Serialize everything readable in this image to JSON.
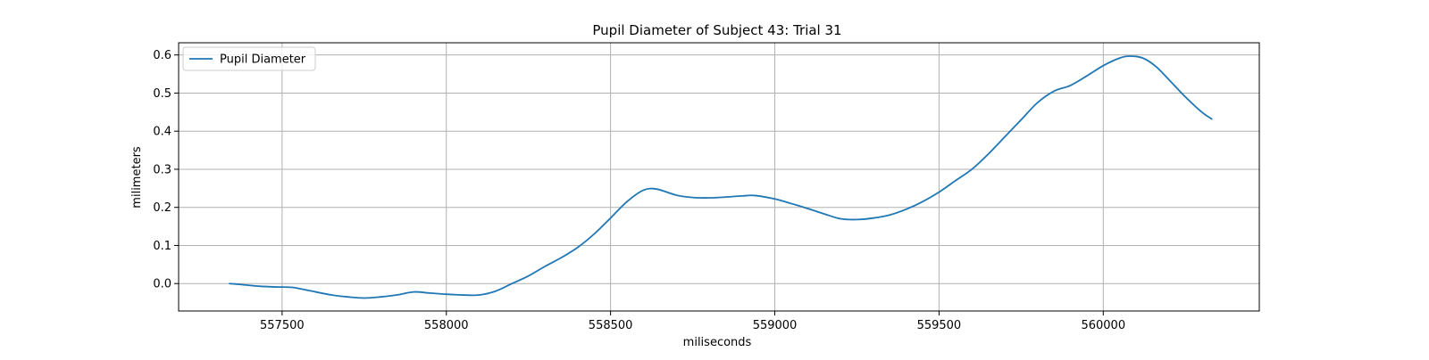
{
  "chart_data": {
    "type": "line",
    "title": "Pupil Diameter of Subject 43: Trial 31",
    "xlabel": "miliseconds",
    "ylabel": "milimeters",
    "xlim": [
      557185,
      560475
    ],
    "ylim": [
      -0.072,
      0.632
    ],
    "xticks": [
      557500,
      558000,
      558500,
      559000,
      559500,
      560000
    ],
    "yticks": [
      0.0,
      0.1,
      0.2,
      0.3,
      0.4,
      0.5,
      0.6
    ],
    "xtick_labels": [
      "557500",
      "558000",
      "558500",
      "559000",
      "559500",
      "560000"
    ],
    "ytick_labels": [
      "0.0",
      "0.1",
      "0.2",
      "0.3",
      "0.4",
      "0.5",
      "0.6"
    ],
    "grid": true,
    "legend": {
      "position": "top-left",
      "entries": [
        "Pupil Diameter"
      ]
    },
    "series": [
      {
        "name": "Pupil Diameter",
        "color": "#1f77b4",
        "x": [
          557340,
          557380,
          557430,
          557480,
          557530,
          557580,
          557650,
          557700,
          557750,
          557800,
          557850,
          557900,
          557950,
          558000,
          558050,
          558100,
          558150,
          558200,
          558250,
          558300,
          558350,
          558400,
          558450,
          558500,
          558550,
          558600,
          558640,
          558700,
          558750,
          558800,
          558850,
          558900,
          558940,
          559000,
          559050,
          559100,
          559150,
          559200,
          559250,
          559300,
          559350,
          559400,
          559450,
          559500,
          559550,
          559600,
          559650,
          559700,
          559750,
          559800,
          559850,
          559900,
          559950,
          560000,
          560050,
          560080,
          560120,
          560160,
          560200,
          560250,
          560300,
          560330
        ],
        "y": [
          0.0,
          -0.003,
          -0.007,
          -0.009,
          -0.01,
          -0.018,
          -0.03,
          -0.035,
          -0.038,
          -0.035,
          -0.03,
          -0.022,
          -0.025,
          -0.028,
          -0.03,
          -0.03,
          -0.02,
          0.0,
          0.02,
          0.045,
          0.068,
          0.095,
          0.13,
          0.172,
          0.215,
          0.245,
          0.248,
          0.232,
          0.226,
          0.225,
          0.227,
          0.23,
          0.231,
          0.222,
          0.21,
          0.197,
          0.183,
          0.17,
          0.168,
          0.172,
          0.18,
          0.195,
          0.215,
          0.24,
          0.27,
          0.3,
          0.34,
          0.385,
          0.43,
          0.475,
          0.505,
          0.52,
          0.545,
          0.572,
          0.592,
          0.597,
          0.592,
          0.57,
          0.535,
          0.49,
          0.45,
          0.432
        ]
      }
    ]
  }
}
